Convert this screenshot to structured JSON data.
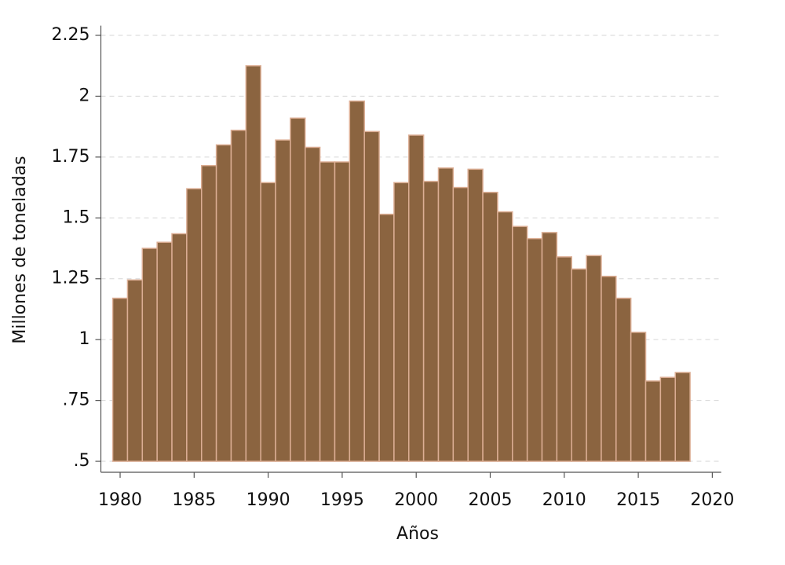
{
  "chart_data": {
    "type": "bar",
    "x": [
      1980,
      1981,
      1982,
      1983,
      1984,
      1985,
      1986,
      1987,
      1988,
      1989,
      1990,
      1991,
      1992,
      1993,
      1994,
      1995,
      1996,
      1997,
      1998,
      1999,
      2000,
      2001,
      2002,
      2003,
      2004,
      2005,
      2006,
      2007,
      2008,
      2009,
      2010,
      2011,
      2012,
      2013,
      2014,
      2015,
      2016,
      2017,
      2018
    ],
    "values": [
      1.17,
      1.245,
      1.375,
      1.4,
      1.435,
      1.62,
      1.715,
      1.8,
      1.86,
      2.125,
      1.645,
      1.82,
      1.91,
      1.79,
      1.73,
      1.73,
      1.98,
      1.855,
      1.515,
      1.645,
      1.84,
      1.65,
      1.705,
      1.625,
      1.7,
      1.605,
      1.525,
      1.465,
      1.415,
      1.44,
      1.34,
      1.29,
      1.345,
      1.26,
      1.17,
      1.03,
      0.83,
      0.845,
      0.865
    ],
    "color": "#8b6440",
    "edge_color": "#dcae94",
    "xlabel": "Años",
    "ylabel": "Millones de toneladas",
    "xlim": [
      1978.7,
      2020.6
    ],
    "xticks": [
      1980,
      1985,
      1990,
      1995,
      2000,
      2005,
      2010,
      2015,
      2020
    ],
    "ylim": [
      0.455,
      2.29
    ],
    "yticks": [
      {
        "value": 0.5,
        "label": ".5"
      },
      {
        "value": 0.75,
        "label": ".75"
      },
      1,
      1.25,
      1.5,
      1.75,
      2,
      2.25
    ],
    "grid": true
  }
}
